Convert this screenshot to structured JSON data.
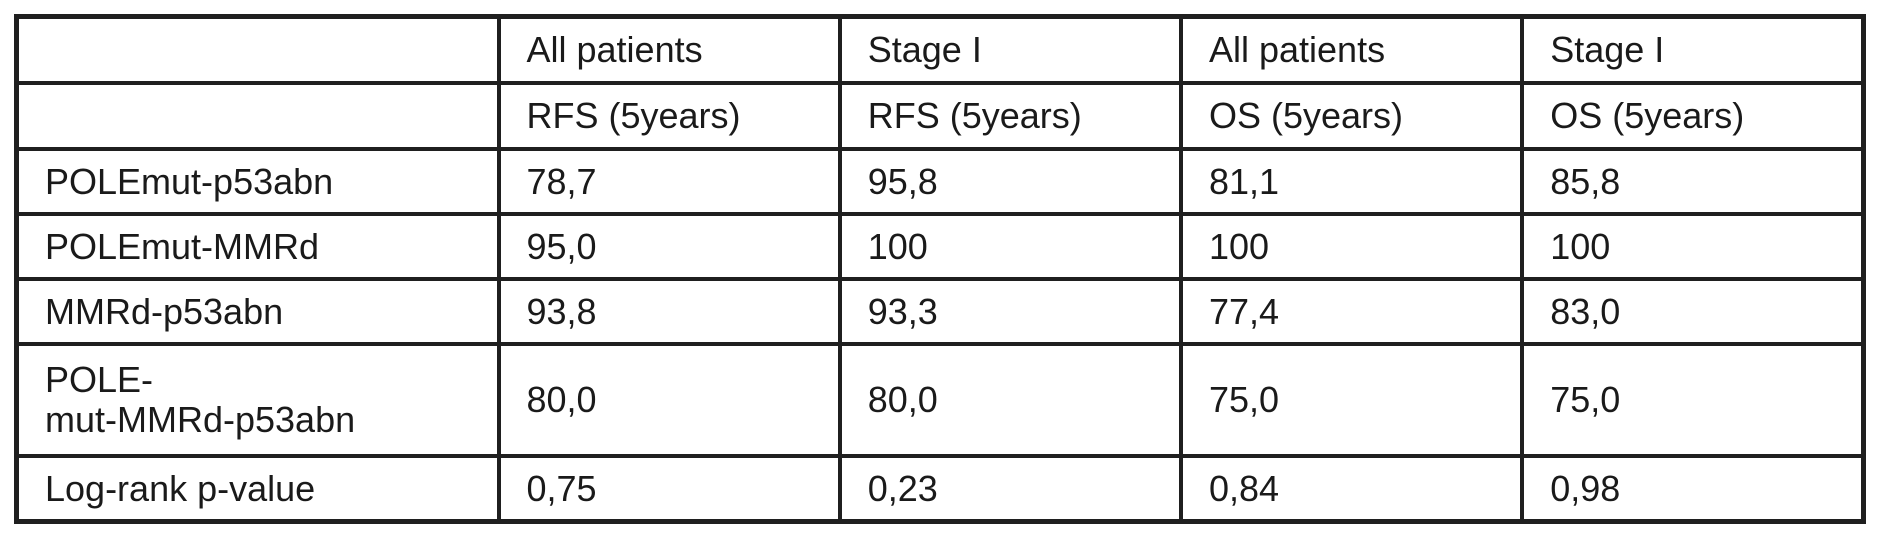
{
  "header_row_1": [
    "",
    "All patients",
    "Stage I",
    "All patients",
    "Stage I"
  ],
  "header_row_2": [
    "",
    "RFS (5years)",
    "RFS (5years)",
    "OS (5years)",
    "OS (5years)"
  ],
  "rows": [
    {
      "label": "POLEmut-p53abn",
      "values": [
        "78,7",
        "95,8",
        "81,1",
        "85,8"
      ]
    },
    {
      "label": "POLEmut-MMRd",
      "values": [
        "95,0",
        "100",
        "100",
        "100"
      ]
    },
    {
      "label": "MMRd-p53abn",
      "values": [
        "93,8",
        "93,3",
        "77,4",
        "83,0"
      ]
    },
    {
      "label_line_1": "POLE-",
      "label_line_2": "mut-MMRd-p53abn",
      "values": [
        "80,0",
        "80,0",
        "75,0",
        "75,0"
      ]
    },
    {
      "label": "Log-rank p-value",
      "values": [
        "0,75",
        "0,23",
        "0,84",
        "0,98"
      ]
    }
  ]
}
